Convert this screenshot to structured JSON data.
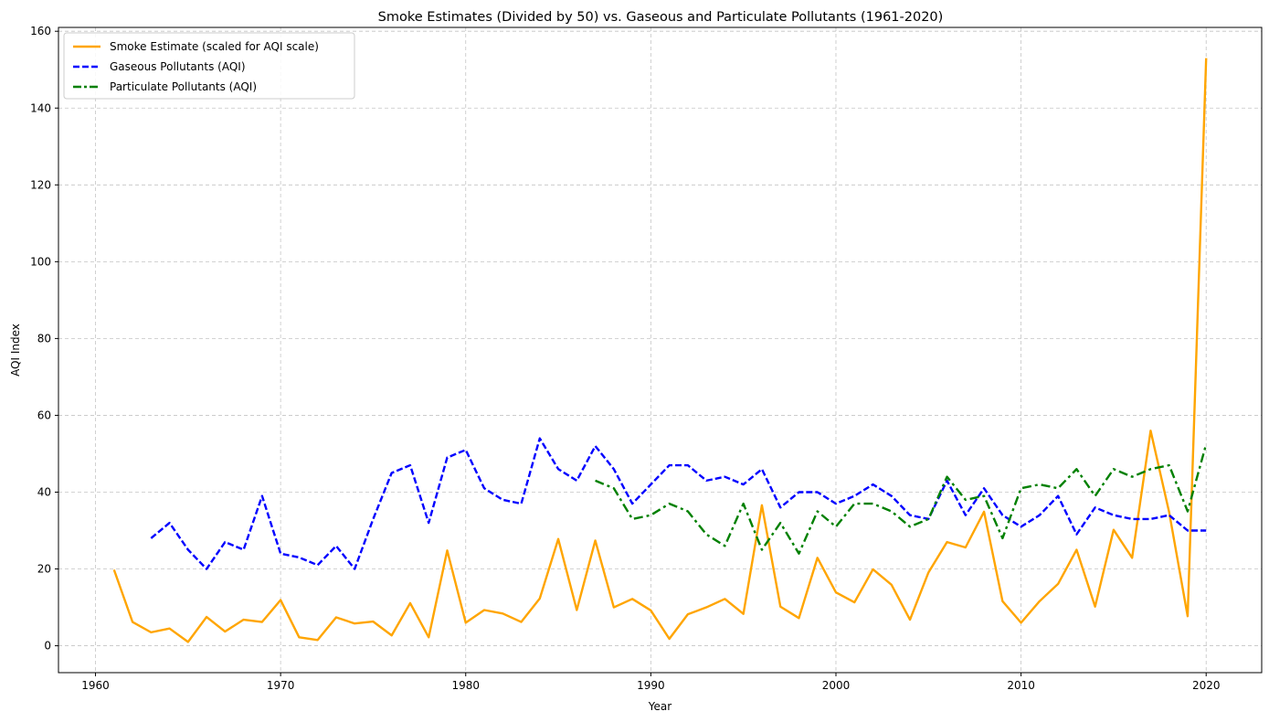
{
  "chart_data": {
    "type": "line",
    "title": "Smoke Estimates (Divided by 50) vs. Gaseous and Particulate Pollutants (1961-2020)",
    "xlabel": "Year",
    "ylabel": "AQI Index",
    "xlim": [
      1958,
      2023
    ],
    "ylim": [
      -7,
      161
    ],
    "xticks": [
      1960,
      1970,
      1980,
      1990,
      2000,
      2010,
      2020
    ],
    "yticks": [
      0,
      20,
      40,
      60,
      80,
      100,
      120,
      140,
      160
    ],
    "grid": true,
    "legend_position": "top-left",
    "series": [
      {
        "name": "Smoke Estimate (scaled for AQI scale)",
        "color": "#ffa500",
        "style": "solid",
        "x": [
          1961,
          1962,
          1963,
          1964,
          1965,
          1966,
          1967,
          1968,
          1969,
          1970,
          1971,
          1972,
          1973,
          1974,
          1975,
          1976,
          1977,
          1978,
          1979,
          1980,
          1981,
          1982,
          1983,
          1984,
          1985,
          1986,
          1987,
          1988,
          1989,
          1990,
          1991,
          1992,
          1993,
          1994,
          1995,
          1996,
          1997,
          1998,
          1999,
          2000,
          2001,
          2002,
          2003,
          2004,
          2005,
          2006,
          2007,
          2008,
          2009,
          2010,
          2011,
          2012,
          2013,
          2014,
          2015,
          2016,
          2017,
          2018,
          2019,
          2020
        ],
        "y": [
          19.8,
          6.2,
          3.5,
          4.5,
          1,
          7.5,
          3.7,
          6.8,
          6.2,
          11.9,
          2.2,
          1.5,
          7.4,
          5.8,
          6.3,
          2.7,
          11.1,
          2.2,
          24.8,
          6,
          9.3,
          8.4,
          6.2,
          12.3,
          27.8,
          9.3,
          27.4,
          10,
          12.2,
          9.2,
          1.8,
          8.2,
          10,
          12.2,
          8.3,
          36.6,
          10.2,
          7.2,
          22.9,
          13.9,
          11.3,
          19.9,
          15.9,
          6.8,
          19.1,
          27,
          25.6,
          34.9,
          11.6,
          6,
          11.6,
          16.1,
          25,
          10.2,
          30.2,
          22.9,
          56,
          34.8,
          7.7,
          153
        ]
      },
      {
        "name": "Gaseous Pollutants (AQI)",
        "color": "#0000ff",
        "style": "dashed",
        "x": [
          1963,
          1964,
          1965,
          1966,
          1967,
          1968,
          1969,
          1970,
          1971,
          1972,
          1973,
          1974,
          1975,
          1976,
          1977,
          1978,
          1979,
          1980,
          1981,
          1982,
          1983,
          1984,
          1985,
          1986,
          1987,
          1988,
          1989,
          1990,
          1991,
          1992,
          1993,
          1994,
          1995,
          1996,
          1997,
          1998,
          1999,
          2000,
          2001,
          2002,
          2003,
          2004,
          2005,
          2006,
          2007,
          2008,
          2009,
          2010,
          2011,
          2012,
          2013,
          2014,
          2015,
          2016,
          2017,
          2018,
          2019,
          2020
        ],
        "y": [
          28,
          32,
          25,
          20,
          27,
          25,
          39,
          24,
          23,
          21,
          26,
          20,
          33,
          45,
          47,
          32,
          49,
          51,
          41,
          38,
          37,
          54,
          46,
          43,
          52,
          46,
          37,
          42,
          47,
          47,
          43,
          44,
          42,
          46,
          36,
          40,
          40,
          37,
          39,
          42,
          39,
          34,
          33,
          43,
          34,
          41,
          34,
          31,
          34,
          39,
          29,
          36,
          34,
          33,
          33,
          34,
          30,
          30
        ]
      },
      {
        "name": "Particulate Pollutants (AQI)",
        "color": "#008000",
        "style": "dashdot",
        "x": [
          1987,
          1988,
          1989,
          1990,
          1991,
          1992,
          1993,
          1994,
          1995,
          1996,
          1997,
          1998,
          1999,
          2000,
          2001,
          2002,
          2003,
          2004,
          2005,
          2006,
          2007,
          2008,
          2009,
          2010,
          2011,
          2012,
          2013,
          2014,
          2015,
          2016,
          2017,
          2018,
          2019,
          2020
        ],
        "y": [
          43,
          41,
          33,
          34,
          37,
          35,
          29,
          26,
          37,
          25,
          32,
          24,
          35,
          31,
          37,
          37,
          35,
          31,
          33,
          44,
          38,
          39,
          28,
          41,
          42,
          41,
          46,
          39,
          46,
          44,
          46,
          47,
          35,
          52.5
        ]
      }
    ]
  }
}
